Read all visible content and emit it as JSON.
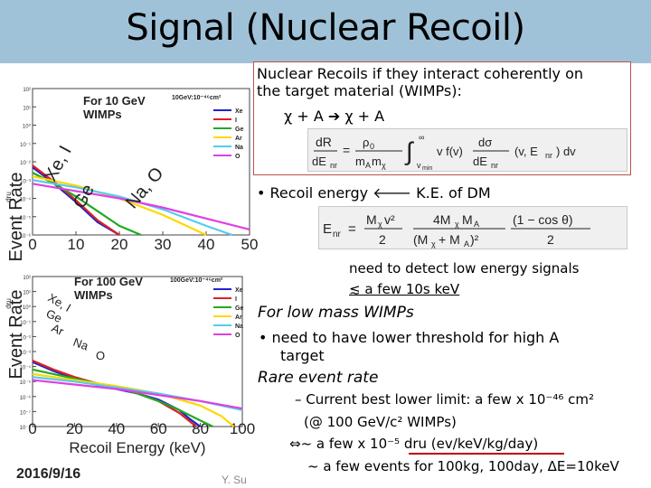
{
  "title": "Signal (Nuclear Recoil)",
  "box": {
    "line1": "Nuclear Recoils if they interact coherently on",
    "line2": "the target material (WIMPs):",
    "reaction": "χ + A ➔ χ + A"
  },
  "bullets": {
    "recoil": "•  Recoil energy 🡐 K.E. of DM",
    "need1": "need to detect low energy signals",
    "need2": "≲ a few 10s keV",
    "low_mass": "For low mass WIMPs",
    "threshold1": "•  need to have lower threshold for high A",
    "threshold2": "target",
    "rare": "Rare event rate",
    "current": "–  Current best lower limit: a few x 10⁻⁴⁶ cm²",
    "at": "(@ 100 GeV/c² WIMPs)",
    "dru": "⇔~ a few x 10⁻⁵ dru (ev/keV/kg/day)",
    "events": "~ a few events for 100kg, 100day, ΔE=10keV"
  },
  "footer": {
    "date": "2016/9/16",
    "author": "Y. Su"
  },
  "colors": {
    "Xe": "#2222cc",
    "I": "#dd2222",
    "Ge": "#22aa22",
    "Ar": "#ffd700",
    "Na": "#55ccee",
    "O": "#e040e0"
  },
  "chart_data": [
    {
      "type": "line",
      "title": "For 10 GeV WIMPs",
      "subtitle": "10GeV:10⁻⁴⁶cm²",
      "xlabel": "",
      "ylabel": "Event Rate",
      "yunit": "dru",
      "xlim": [
        0,
        50
      ],
      "ylim": [
        -6,
        2
      ],
      "log_y": true,
      "x_ticks": [
        "0",
        "10",
        "20",
        "30",
        "40",
        "50"
      ],
      "y_ticks": [
        "10²",
        "10¹",
        "10⁰",
        "10⁻¹",
        "10⁻²",
        "10⁻³",
        "10⁻⁴",
        "10⁻⁵",
        "10⁻⁶"
      ],
      "annotations": [
        "Xe, I",
        "Ge",
        "Na, O"
      ],
      "series": [
        {
          "name": "Xe",
          "x": [
            0,
            5,
            10,
            15,
            20
          ],
          "y": [
            -2.3,
            -3.2,
            -4.2,
            -5.3,
            -6
          ]
        },
        {
          "name": "I",
          "x": [
            0,
            5,
            10,
            15,
            20
          ],
          "y": [
            -2.2,
            -3.1,
            -4.1,
            -5.2,
            -6
          ]
        },
        {
          "name": "Ge",
          "x": [
            0,
            5,
            10,
            15,
            20,
            25
          ],
          "y": [
            -2.6,
            -3.2,
            -3.9,
            -4.7,
            -5.5,
            -6
          ]
        },
        {
          "name": "Ar",
          "x": [
            0,
            10,
            20,
            30,
            40
          ],
          "y": [
            -2.8,
            -3.3,
            -4.0,
            -4.9,
            -6
          ]
        },
        {
          "name": "Na",
          "x": [
            0,
            10,
            20,
            30,
            40,
            46
          ],
          "y": [
            -3.0,
            -3.4,
            -3.9,
            -4.6,
            -5.5,
            -6
          ]
        },
        {
          "name": "O",
          "x": [
            0,
            10,
            20,
            30,
            40,
            50
          ],
          "y": [
            -3.2,
            -3.6,
            -4.0,
            -4.5,
            -5.1,
            -5.7
          ]
        }
      ]
    },
    {
      "type": "line",
      "title": "For 100 GeV WIMPs",
      "subtitle": "100GeV:10⁻⁴⁶cm²",
      "xlabel": "Recoil Energy (keV)",
      "ylabel": "Event Rate",
      "yunit": "dru",
      "xlim": [
        0,
        100
      ],
      "ylim": [
        -8,
        2
      ],
      "log_y": true,
      "x_ticks": [
        "0",
        "20",
        "40",
        "60",
        "80",
        "100"
      ],
      "y_ticks": [
        "10²",
        "10¹",
        "10⁰",
        "10⁻¹",
        "10⁻²",
        "10⁻³",
        "10⁻⁴",
        "10⁻⁵",
        "10⁻⁶",
        "10⁻⁷",
        "10⁻⁸"
      ],
      "annotations": [
        "Xe, I",
        "Ge",
        "Ar",
        "Na",
        "O"
      ],
      "series": [
        {
          "name": "Xe",
          "x": [
            0,
            10,
            20,
            30,
            40,
            50,
            60,
            70,
            75,
            80
          ],
          "y": [
            -3.7,
            -4.3,
            -4.8,
            -5.2,
            -5.5,
            -5.8,
            -6.2,
            -6.9,
            -7.5,
            -8
          ]
        },
        {
          "name": "I",
          "x": [
            0,
            10,
            20,
            30,
            40,
            50,
            60,
            70,
            78
          ],
          "y": [
            -3.6,
            -4.2,
            -4.7,
            -5.1,
            -5.4,
            -5.8,
            -6.3,
            -7.1,
            -8
          ]
        },
        {
          "name": "Ge",
          "x": [
            0,
            10,
            20,
            30,
            40,
            50,
            60,
            70,
            80,
            86
          ],
          "y": [
            -4.2,
            -4.5,
            -4.8,
            -5.1,
            -5.4,
            -5.8,
            -6.3,
            -6.9,
            -7.6,
            -8
          ]
        },
        {
          "name": "Ar",
          "x": [
            0,
            20,
            40,
            60,
            80,
            90,
            96
          ],
          "y": [
            -4.5,
            -4.9,
            -5.3,
            -5.8,
            -6.6,
            -7.3,
            -8
          ]
        },
        {
          "name": "Na",
          "x": [
            0,
            20,
            40,
            60,
            80,
            100
          ],
          "y": [
            -4.7,
            -5.0,
            -5.4,
            -5.8,
            -6.3,
            -6.9
          ]
        },
        {
          "name": "O",
          "x": [
            0,
            20,
            40,
            60,
            80,
            100
          ],
          "y": [
            -4.9,
            -5.2,
            -5.5,
            -5.9,
            -6.3,
            -6.8
          ]
        }
      ]
    }
  ]
}
